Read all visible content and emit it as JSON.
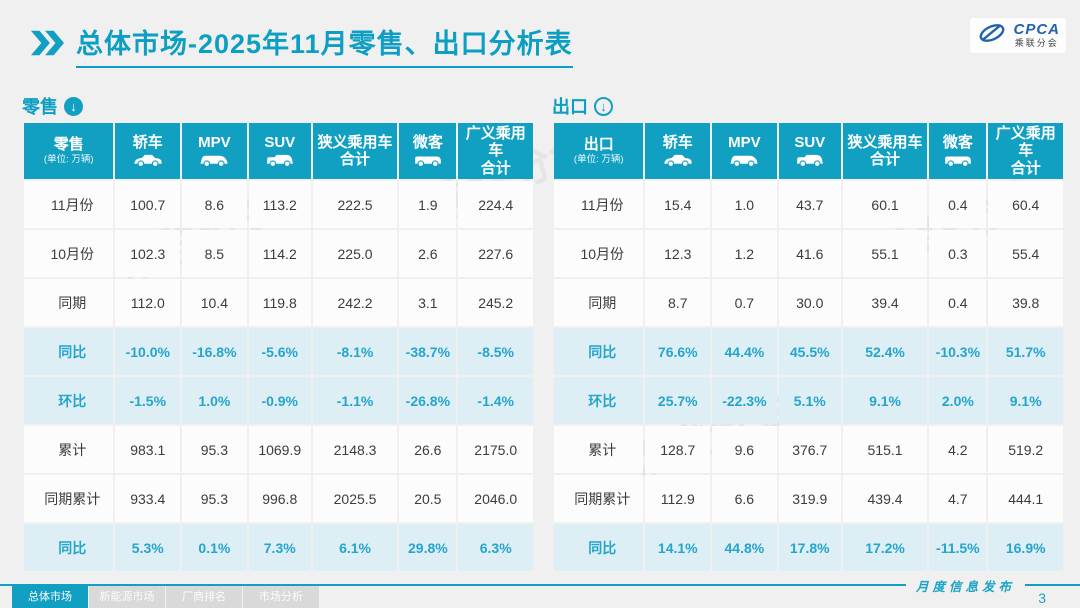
{
  "page": {
    "title": "总体市场-2025年11月零售、出口分析表",
    "footer_label": "月度信息发布",
    "page_number": "3",
    "watermark": "乘联分会"
  },
  "logo": {
    "text": "CPCA",
    "subtext": "乘联分会"
  },
  "colors": {
    "accent": "#119fc2",
    "highlight_bg": "#ddeef5",
    "highlight_text": "#25a5cb"
  },
  "columns": [
    {
      "lines": [
        "轿车"
      ],
      "icon": "sedan-icon"
    },
    {
      "lines": [
        "MPV"
      ],
      "icon": "mpv-icon"
    },
    {
      "lines": [
        "SUV"
      ],
      "icon": "suv-icon"
    },
    {
      "lines": [
        "狭义乘用车",
        "合计"
      ],
      "icon": null
    },
    {
      "lines": [
        "微客"
      ],
      "icon": "microvan-icon"
    },
    {
      "lines": [
        "广义乘用车",
        "合计"
      ],
      "icon": null
    }
  ],
  "tables": [
    {
      "section_label": "零售",
      "corner_title": "零售",
      "corner_unit": "(单位: 万辆)",
      "rows": [
        {
          "label": "11月份",
          "highlight": false,
          "values": [
            "100.7",
            "8.6",
            "113.2",
            "222.5",
            "1.9",
            "224.4"
          ]
        },
        {
          "label": "10月份",
          "highlight": false,
          "values": [
            "102.3",
            "8.5",
            "114.2",
            "225.0",
            "2.6",
            "227.6"
          ]
        },
        {
          "label": "同期",
          "highlight": false,
          "values": [
            "112.0",
            "10.4",
            "119.8",
            "242.2",
            "3.1",
            "245.2"
          ]
        },
        {
          "label": "同比",
          "highlight": true,
          "values": [
            "-10.0%",
            "-16.8%",
            "-5.6%",
            "-8.1%",
            "-38.7%",
            "-8.5%"
          ]
        },
        {
          "label": "环比",
          "highlight": true,
          "values": [
            "-1.5%",
            "1.0%",
            "-0.9%",
            "-1.1%",
            "-26.8%",
            "-1.4%"
          ]
        },
        {
          "label": "累计",
          "highlight": false,
          "values": [
            "983.1",
            "95.3",
            "1069.9",
            "2148.3",
            "26.6",
            "2175.0"
          ]
        },
        {
          "label": "同期累计",
          "highlight": false,
          "values": [
            "933.4",
            "95.3",
            "996.8",
            "2025.5",
            "20.5",
            "2046.0"
          ]
        },
        {
          "label": "同比",
          "highlight": true,
          "values": [
            "5.3%",
            "0.1%",
            "7.3%",
            "6.1%",
            "29.8%",
            "6.3%"
          ]
        }
      ]
    },
    {
      "section_label": "出口",
      "corner_title": "出口",
      "corner_unit": "(单位: 万辆)",
      "rows": [
        {
          "label": "11月份",
          "highlight": false,
          "values": [
            "15.4",
            "1.0",
            "43.7",
            "60.1",
            "0.4",
            "60.4"
          ]
        },
        {
          "label": "10月份",
          "highlight": false,
          "values": [
            "12.3",
            "1.2",
            "41.6",
            "55.1",
            "0.3",
            "55.4"
          ]
        },
        {
          "label": "同期",
          "highlight": false,
          "values": [
            "8.7",
            "0.7",
            "30.0",
            "39.4",
            "0.4",
            "39.8"
          ]
        },
        {
          "label": "同比",
          "highlight": true,
          "values": [
            "76.6%",
            "44.4%",
            "45.5%",
            "52.4%",
            "-10.3%",
            "51.7%"
          ]
        },
        {
          "label": "环比",
          "highlight": true,
          "values": [
            "25.7%",
            "-22.3%",
            "5.1%",
            "9.1%",
            "2.0%",
            "9.1%"
          ]
        },
        {
          "label": "累计",
          "highlight": false,
          "values": [
            "128.7",
            "9.6",
            "376.7",
            "515.1",
            "4.2",
            "519.2"
          ]
        },
        {
          "label": "同期累计",
          "highlight": false,
          "values": [
            "112.9",
            "6.6",
            "319.9",
            "439.4",
            "4.7",
            "444.1"
          ]
        },
        {
          "label": "同比",
          "highlight": true,
          "values": [
            "14.1%",
            "44.8%",
            "17.8%",
            "17.2%",
            "-11.5%",
            "16.9%"
          ]
        }
      ]
    }
  ],
  "tabs": [
    {
      "label": "总体市场",
      "active": true
    },
    {
      "label": "新能源市场",
      "active": false
    },
    {
      "label": "厂商排名",
      "active": false
    },
    {
      "label": "市场分析",
      "active": false
    }
  ]
}
